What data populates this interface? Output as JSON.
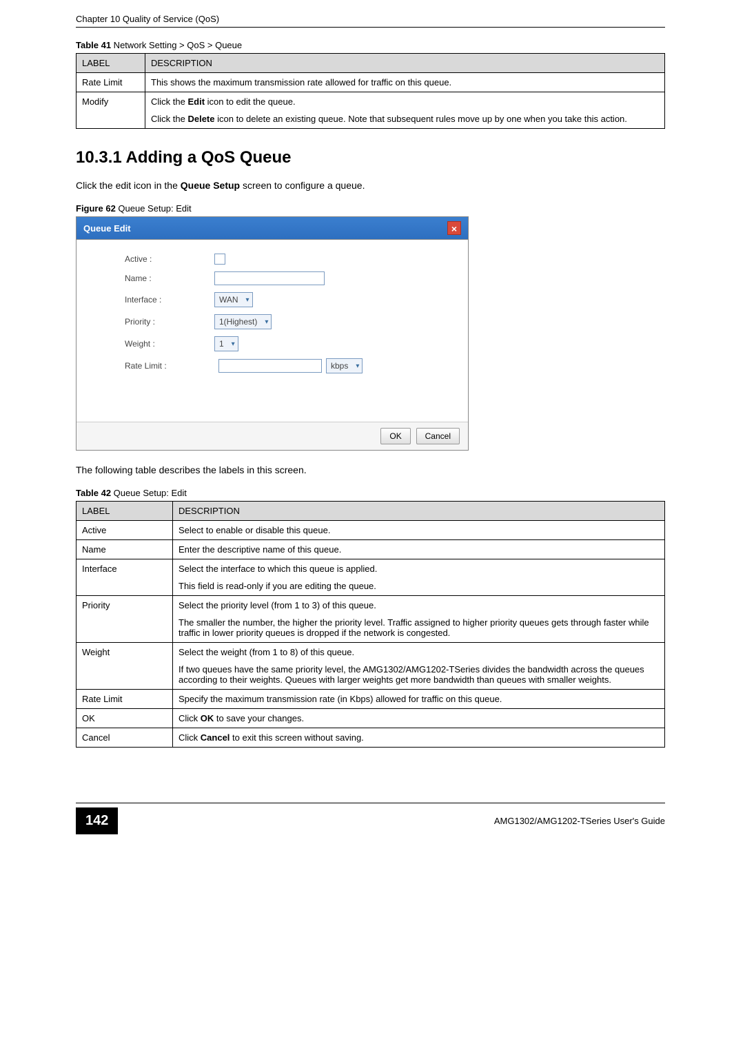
{
  "page": {
    "chapter_header": "Chapter 10 Quality of Service (QoS)",
    "page_number": "142",
    "guide_name": "AMG1302/AMG1202-TSeries User's Guide"
  },
  "table41": {
    "caption_strong": "Table 41",
    "caption_rest": "   Network Setting > QoS > Queue",
    "header_label": "LABEL",
    "header_desc": "DESCRIPTION",
    "rows": [
      {
        "label": "Rate Limit",
        "desc_parts": [
          "This shows the maximum transmission rate allowed for traffic on this queue."
        ]
      },
      {
        "label": "Modify",
        "desc_parts": [
          "Click the <b>Edit</b> icon to edit the queue.",
          "Click the <b>Delete</b> icon to delete an existing queue. Note that subsequent rules move up by one when you take this action."
        ]
      }
    ]
  },
  "section": {
    "heading": "10.3.1  Adding a QoS Queue",
    "intro": "Click the edit icon in the <b>Queue Setup</b> screen to configure a queue."
  },
  "figure62": {
    "caption_strong": "Figure 62",
    "caption_rest": "   Queue Setup: Edit",
    "dialog_title": "Queue Edit",
    "fields": {
      "active_label": "Active :",
      "name_label": "Name :",
      "interface_label": "Interface :",
      "interface_value": "WAN",
      "priority_label": "Priority :",
      "priority_value": "1(Highest)",
      "weight_label": "Weight :",
      "weight_value": "1",
      "ratelimit_label": "Rate Limit :",
      "ratelimit_unit": "kbps"
    },
    "buttons": {
      "ok": "OK",
      "cancel": "Cancel"
    }
  },
  "table42intro": "The following table describes the labels in this screen.",
  "table42": {
    "caption_strong": "Table 42",
    "caption_rest": "   Queue Setup: Edit",
    "header_label": "LABEL",
    "header_desc": "DESCRIPTION",
    "rows": [
      {
        "label": "Active",
        "desc_parts": [
          "Select to enable or disable this queue."
        ]
      },
      {
        "label": "Name",
        "desc_parts": [
          "Enter the descriptive name of this queue."
        ]
      },
      {
        "label": "Interface",
        "desc_parts": [
          "Select the interface to which this queue is applied.",
          "This field is read-only if you are editing the queue."
        ]
      },
      {
        "label": "Priority",
        "desc_parts": [
          "Select the priority level (from 1 to 3) of this queue.",
          "The smaller the number, the higher the priority level. Traffic assigned to higher priority queues gets through faster while traffic in lower priority queues is dropped if the network is congested."
        ]
      },
      {
        "label": "Weight",
        "desc_parts": [
          "Select the weight (from 1 to 8) of this queue.",
          "If two queues have the same priority level, the AMG1302/AMG1202-TSeries divides the bandwidth across the queues according to their weights. Queues with larger weights get more bandwidth than queues with smaller weights."
        ]
      },
      {
        "label": "Rate Limit",
        "desc_parts": [
          "Specify the maximum transmission rate (in Kbps) allowed for traffic on this queue."
        ]
      },
      {
        "label": "OK",
        "desc_parts": [
          "Click <b>OK</b> to save your changes."
        ]
      },
      {
        "label": "Cancel",
        "desc_parts": [
          "Click <b>Cancel</b> to exit this screen without saving."
        ]
      }
    ]
  },
  "styles": {
    "header_bg": "#d9d9d9",
    "dialog_header_bg": "#3b7fcf",
    "close_bg": "#d94a3a"
  }
}
